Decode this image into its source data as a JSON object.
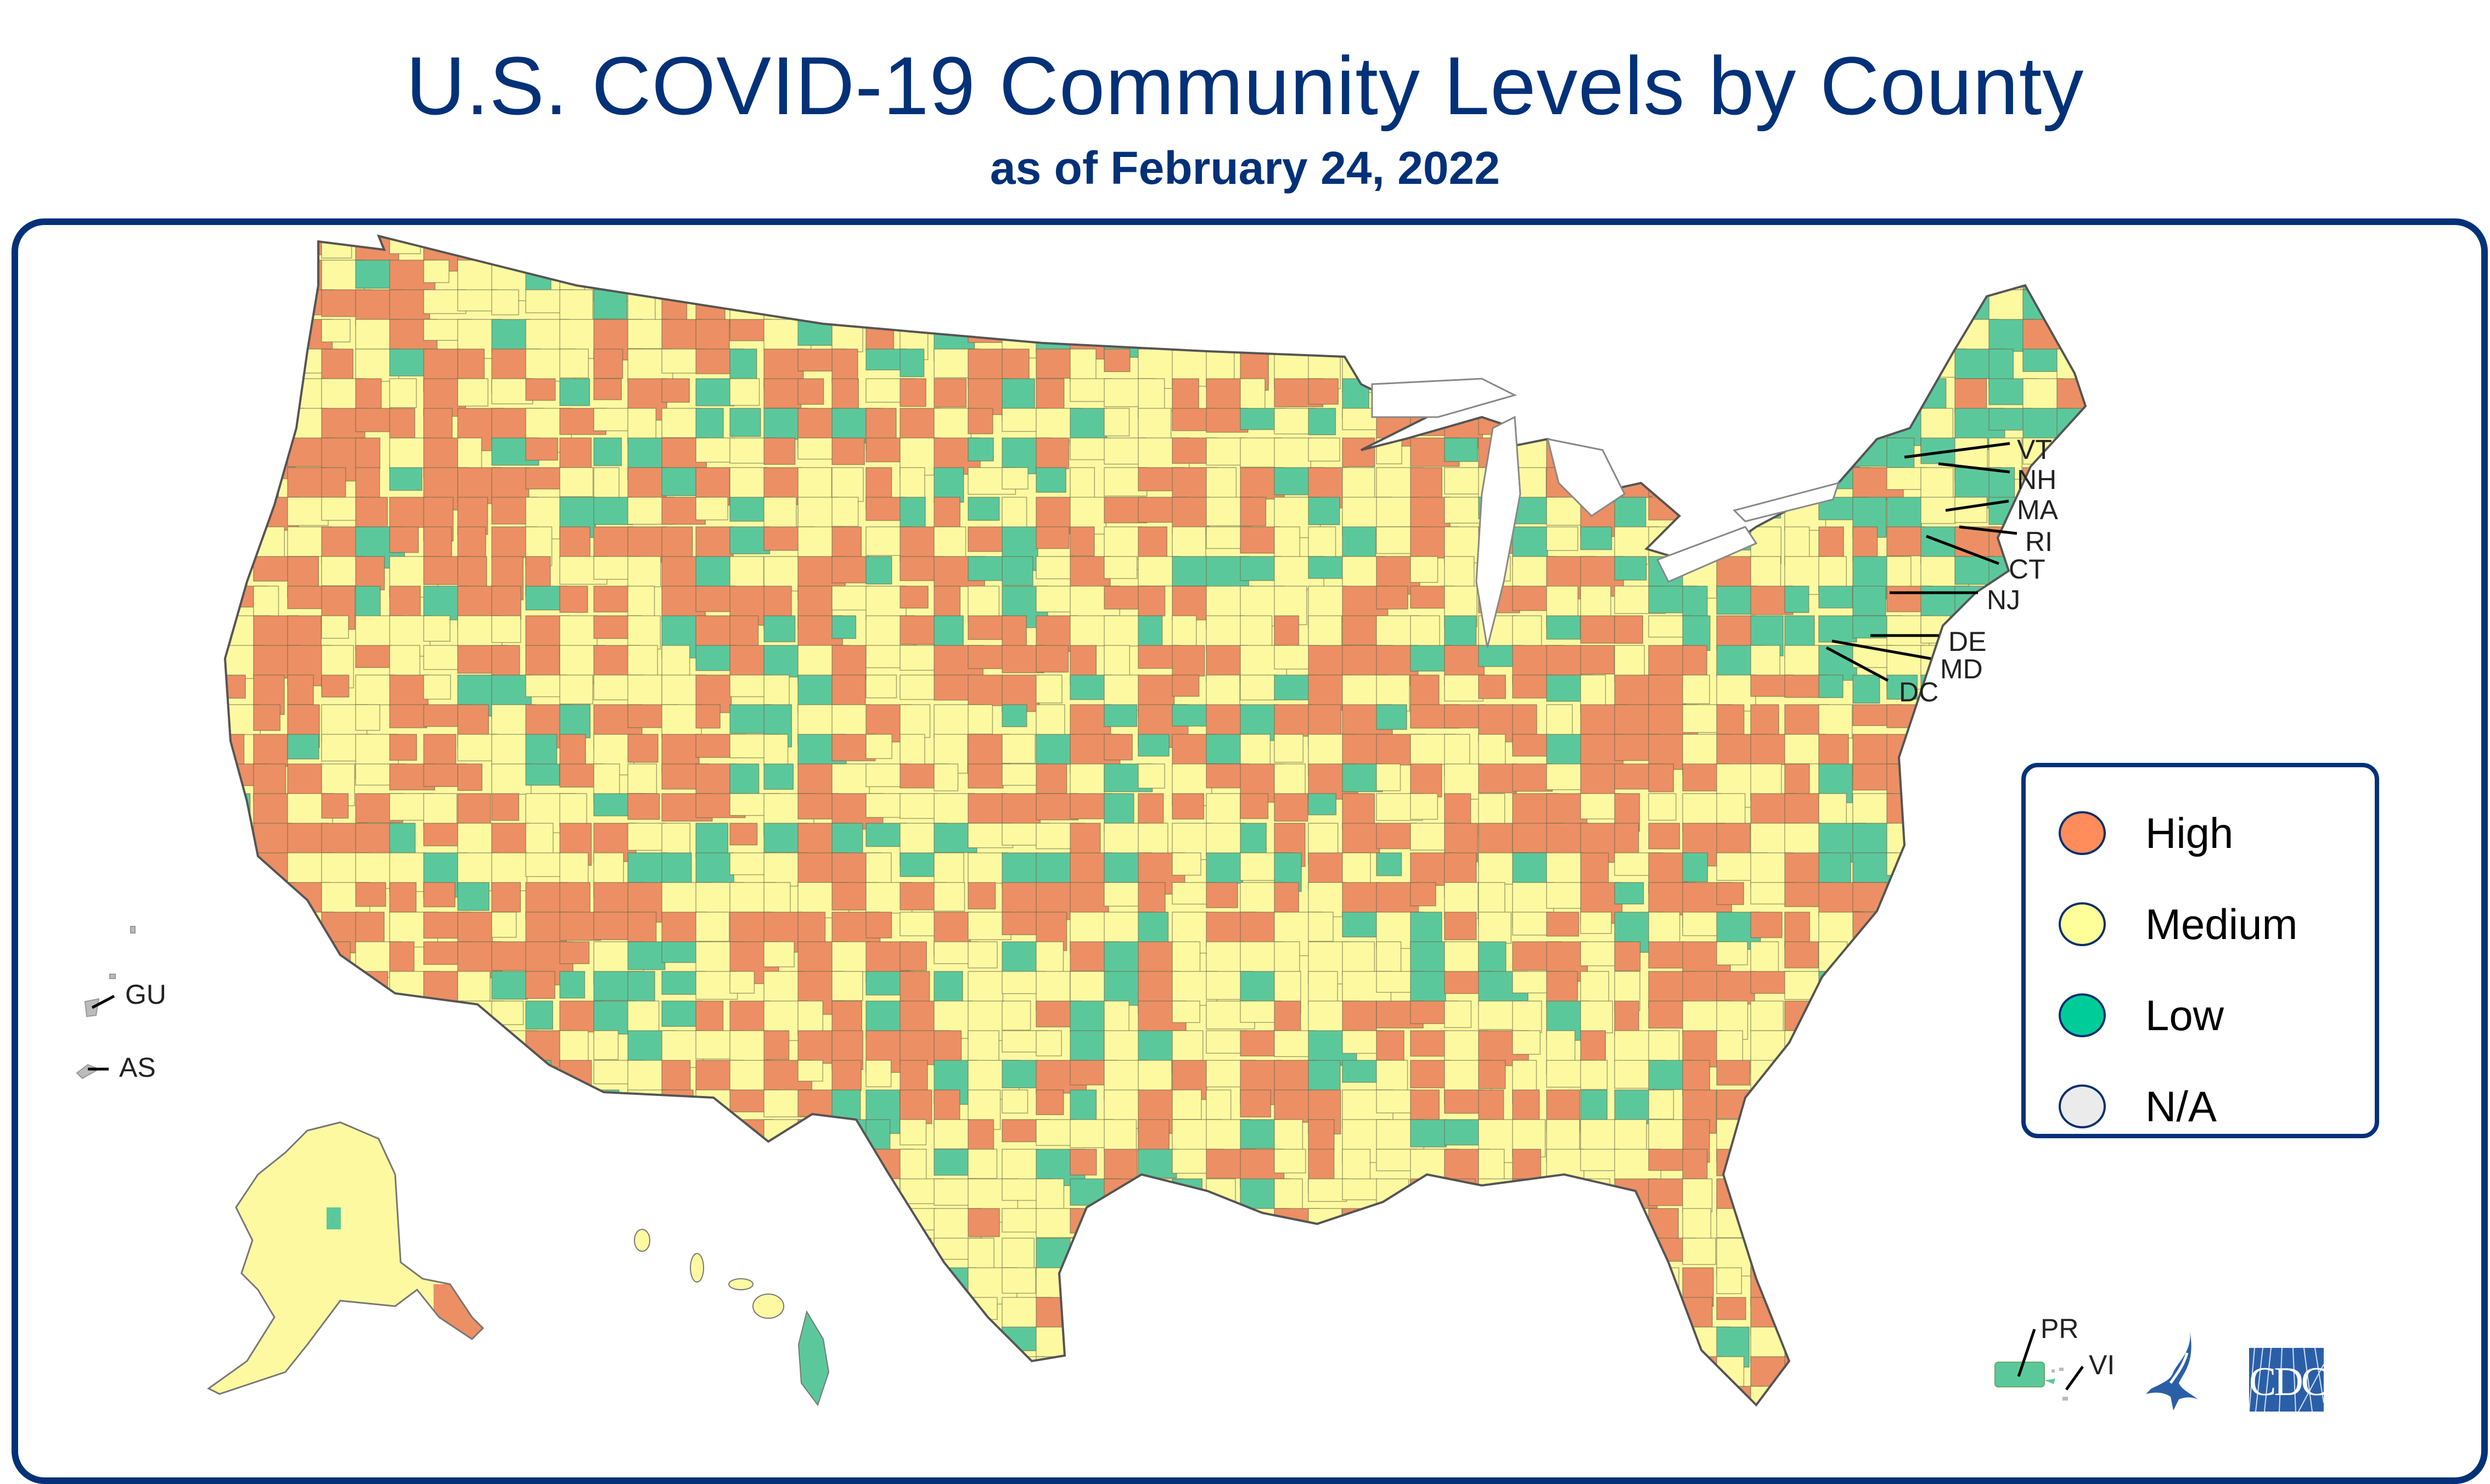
{
  "header": {
    "title": "U.S. COVID-19 Community Levels by County",
    "subtitle": "as of February 24, 2022"
  },
  "legend": {
    "items": [
      {
        "label": "High",
        "color": "#FF8C5A"
      },
      {
        "label": "Medium",
        "color": "#FFFF99"
      },
      {
        "label": "Low",
        "color": "#00CC99"
      },
      {
        "label": "N/A",
        "color": "#EBEBEB"
      }
    ]
  },
  "map_colors": {
    "high": "#EC8F64",
    "medium": "#FDF9A1",
    "low": "#5BC89C",
    "na": "#D9D9D9",
    "border": "#6b6b4a",
    "frame": "#033178"
  },
  "state_labels": {
    "vt": "VT",
    "nh": "NH",
    "ma": "MA",
    "ri": "RI",
    "ct": "CT",
    "nj": "NJ",
    "de": "DE",
    "md": "MD",
    "dc": "DC"
  },
  "territory_labels": {
    "gu": "GU",
    "as": "AS",
    "pr": "PR",
    "vi": "VI"
  },
  "logos": {
    "cdc": "CDC",
    "hhs": "HHS eagle"
  }
}
